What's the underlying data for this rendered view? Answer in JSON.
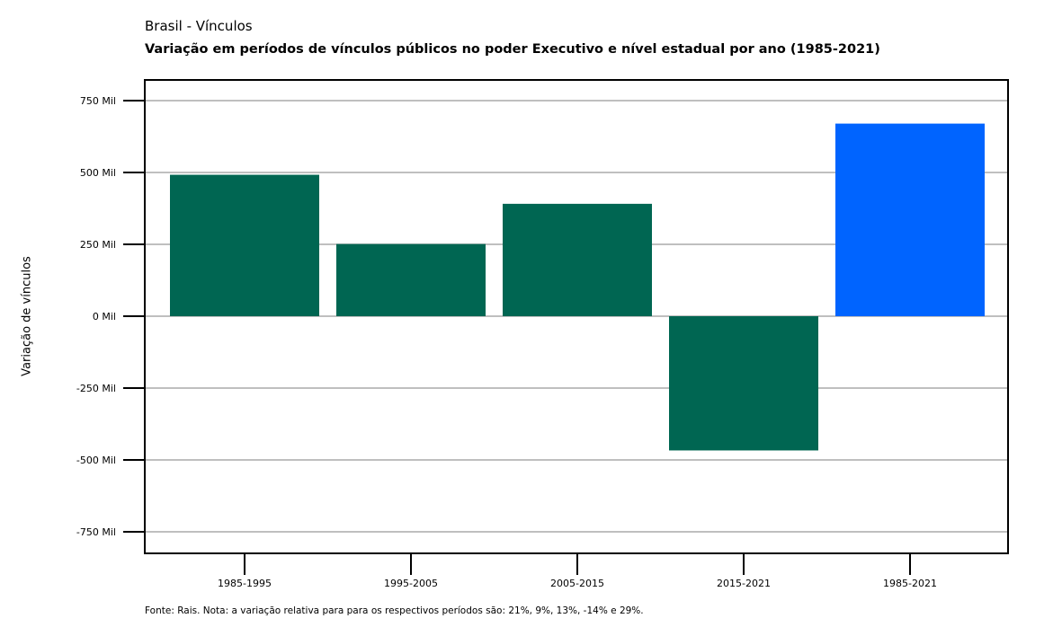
{
  "header": {
    "subtitle": "Brasil - Vínculos",
    "title": "Variação em períodos de vínculos públicos no poder Executivo e nível estadual por ano (1985-2021)"
  },
  "footer": {
    "caption": "Fonte: Rais. Nota: a variação relativa para para os respectivos períodos são: 21%, 9%, 13%, -14% e 29%."
  },
  "colors": {
    "series": "#006652",
    "highlight": "#0064FF",
    "grid": "#bfbfbf"
  },
  "chart_data": {
    "type": "bar",
    "title": "Variação em períodos de vínculos públicos no poder Executivo e nível estadual por ano (1985-2021)",
    "ylabel": "Variação de vínculos",
    "xlabel": "",
    "categories": [
      "1985-1995",
      "1995-2005",
      "2005-2015",
      "2015-2021",
      "1985-2021"
    ],
    "values": [
      492000,
      251000,
      391000,
      -467000,
      670000
    ],
    "highlight_index": 4,
    "ylim": [
      -820000,
      820000
    ],
    "yticks": [
      -750000,
      -500000,
      -250000,
      0,
      250000,
      500000,
      750000
    ],
    "ytick_labels": [
      "-750 Mil",
      "-500 Mil",
      "-250 Mil",
      "0 Mil",
      "250 Mil",
      "500 Mil",
      "750 Mil"
    ],
    "grid": true,
    "legend": "none"
  }
}
